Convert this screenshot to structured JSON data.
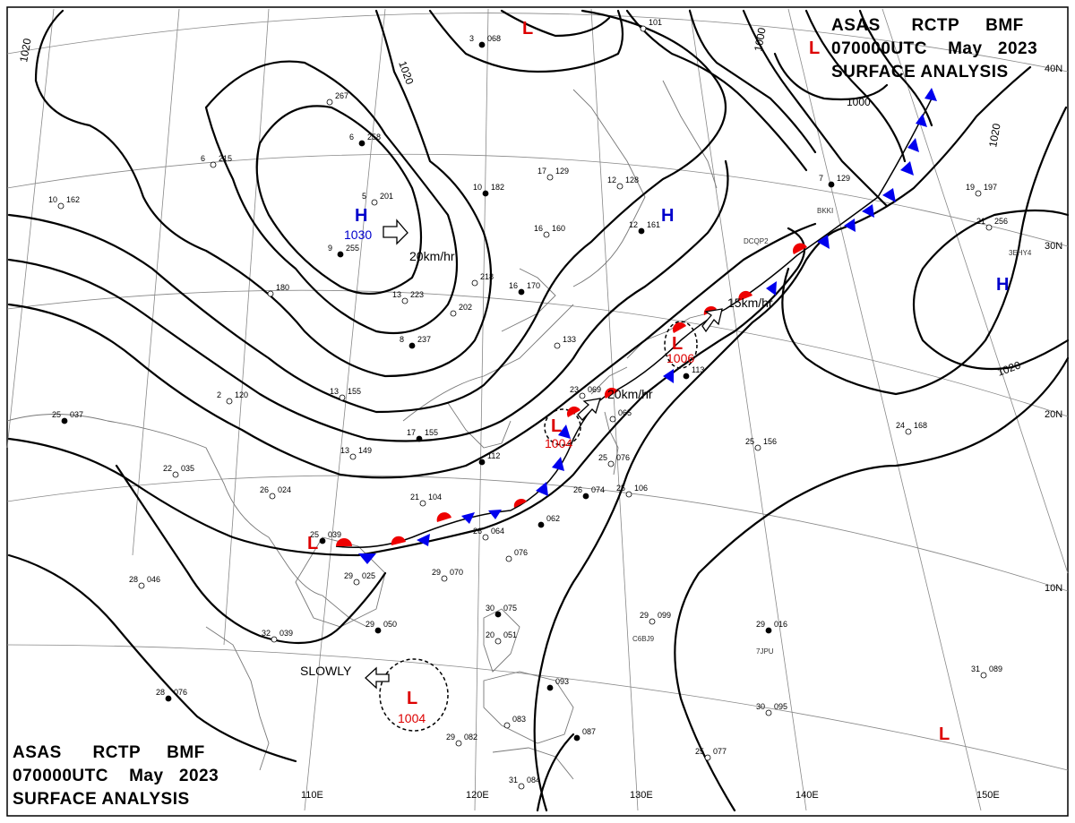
{
  "chart_info": {
    "agency": "ASAS",
    "station": "RCTP",
    "office": "BMF",
    "time": "070000UTC",
    "month": "May",
    "year": "2023",
    "title": "SURFACE ANALYSIS"
  },
  "colors": {
    "high": "#0000cc",
    "low": "#dd0000",
    "cold_front": "#0000ee",
    "warm_front": "#ee0000",
    "isobar": "#000000",
    "grid": "#888888"
  },
  "longitudes": [
    "110E",
    "120E",
    "130E",
    "140E",
    "150E"
  ],
  "latitudes": [
    "40N",
    "30N",
    "20N",
    "10N"
  ],
  "isobar_labels": [
    "1020",
    "1020",
    "1000",
    "1000",
    "1020",
    "1020"
  ],
  "pressure_centers": [
    {
      "type": "H",
      "value": "1030"
    },
    {
      "type": "H",
      "value": ""
    },
    {
      "type": "H",
      "value": ""
    },
    {
      "type": "L",
      "value": "1006"
    },
    {
      "type": "L",
      "value": "1004"
    },
    {
      "type": "L",
      "value": "1004"
    },
    {
      "type": "L",
      "value": ""
    },
    {
      "type": "L",
      "value": ""
    },
    {
      "type": "L",
      "value": ""
    },
    {
      "type": "L",
      "value": ""
    }
  ],
  "movements": [
    "20km/hr",
    "15km/hr",
    "20km/hr",
    "SLOWLY"
  ],
  "stations": [
    {
      "p": "068",
      "t": "3"
    },
    {
      "p": "101",
      "t": ""
    },
    {
      "p": "267",
      "t": ""
    },
    {
      "p": "258",
      "t": "6"
    },
    {
      "p": "215",
      "t": "6"
    },
    {
      "p": "201",
      "t": "5"
    },
    {
      "p": "255",
      "t": "9"
    },
    {
      "p": "180",
      "t": ""
    },
    {
      "p": "162",
      "t": "10"
    },
    {
      "p": "182",
      "t": "10"
    },
    {
      "p": "129",
      "t": "17"
    },
    {
      "p": "160",
      "t": "16"
    },
    {
      "p": "161",
      "t": "12"
    },
    {
      "p": "128",
      "t": "12"
    },
    {
      "p": "223",
      "t": "13"
    },
    {
      "p": "237",
      "t": "8"
    },
    {
      "p": "202",
      "t": ""
    },
    {
      "p": "218",
      "t": ""
    },
    {
      "p": "170",
      "t": "16"
    },
    {
      "p": "133",
      "t": ""
    },
    {
      "p": "155",
      "t": "13"
    },
    {
      "p": "155",
      "t": "17"
    },
    {
      "p": "149",
      "t": "13"
    },
    {
      "p": "120",
      "t": "2"
    },
    {
      "p": "112",
      "t": ""
    },
    {
      "p": "104",
      "t": "21"
    },
    {
      "p": "076",
      "t": "25"
    },
    {
      "p": "074",
      "t": "26"
    },
    {
      "p": "106",
      "t": "25"
    },
    {
      "p": "065",
      "t": ""
    },
    {
      "p": "113",
      "t": ""
    },
    {
      "p": "156",
      "t": "25"
    },
    {
      "p": "168",
      "t": "24"
    },
    {
      "p": "129",
      "t": "7"
    },
    {
      "p": "256",
      "t": "21"
    },
    {
      "p": "197",
      "t": "19"
    },
    {
      "p": "037",
      "t": "25"
    },
    {
      "p": "035",
      "t": "22"
    },
    {
      "p": "024",
      "t": "26"
    },
    {
      "p": "039",
      "t": "25"
    },
    {
      "p": "025",
      "t": "29"
    },
    {
      "p": "064",
      "t": "26"
    },
    {
      "p": "062",
      "t": ""
    },
    {
      "p": "076",
      "t": ""
    },
    {
      "p": "070",
      "t": "29"
    },
    {
      "p": "050",
      "t": "29"
    },
    {
      "p": "039",
      "t": "32"
    },
    {
      "p": "046",
      "t": "28"
    },
    {
      "p": "075",
      "t": "30"
    },
    {
      "p": "051",
      "t": "20"
    },
    {
      "p": "099",
      "t": "29"
    },
    {
      "p": "016",
      "t": "29"
    },
    {
      "p": "089",
      "t": "31"
    },
    {
      "p": "095",
      "t": "30"
    },
    {
      "p": "076",
      "t": "28"
    },
    {
      "p": "082",
      "t": "29"
    },
    {
      "p": "083",
      "t": ""
    },
    {
      "p": "087",
      "t": ""
    },
    {
      "p": "084",
      "t": "31"
    },
    {
      "p": "077",
      "t": "25"
    },
    {
      "p": "093",
      "t": ""
    },
    {
      "p": "069",
      "t": "23"
    }
  ],
  "ship_ids": [
    "DCQP2",
    "BKKI",
    "3EHY4",
    "C6BJ9",
    "7JPU"
  ]
}
